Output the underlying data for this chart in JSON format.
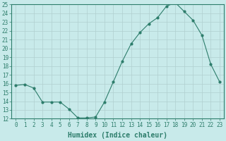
{
  "x": [
    0,
    1,
    2,
    3,
    4,
    5,
    6,
    7,
    8,
    9,
    10,
    11,
    12,
    13,
    14,
    15,
    16,
    17,
    18,
    19,
    20,
    21,
    22,
    23
  ],
  "y": [
    15.8,
    15.9,
    15.5,
    13.9,
    13.9,
    13.9,
    13.1,
    12.1,
    12.1,
    12.2,
    13.9,
    16.2,
    18.5,
    20.5,
    21.8,
    22.8,
    23.5,
    24.8,
    25.2,
    24.2,
    23.2,
    21.5,
    18.2,
    16.2
  ],
  "xlabel": "Humidex (Indice chaleur)",
  "ylim": [
    12,
    25
  ],
  "yticks": [
    12,
    13,
    14,
    15,
    16,
    17,
    18,
    19,
    20,
    21,
    22,
    23,
    24,
    25
  ],
  "xticks": [
    0,
    1,
    2,
    3,
    4,
    5,
    6,
    7,
    8,
    9,
    10,
    11,
    12,
    13,
    14,
    15,
    16,
    17,
    18,
    19,
    20,
    21,
    22,
    23
  ],
  "line_color": "#2d7d6b",
  "marker": "o",
  "marker_size": 2,
  "bg_color": "#c8eaea",
  "grid_color": "#b0cfcf",
  "axes_color": "#2d7d6b",
  "tick_color": "#2d7d6b",
  "label_color": "#2d7d6b",
  "xlabel_fontsize": 7,
  "tick_fontsize": 5.5
}
